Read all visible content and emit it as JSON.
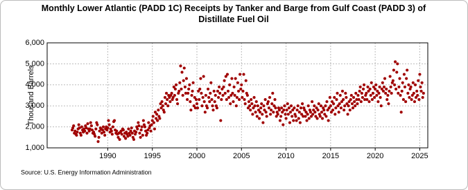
{
  "chart_data": {
    "type": "scatter",
    "title": "Monthly Lower Atlantic (PADD 1C) Receipts by Tanker and Barge from Gulf Coast (PADD 3) of Distillate Fuel Oil",
    "ylabel": "Thousand Barrels",
    "source": "Source: U.S. Energy Information Administration",
    "color": "#a00000",
    "grid": true,
    "xlim": [
      1983.2,
      2025.9
    ],
    "xticks": [
      1990,
      1995,
      2000,
      2005,
      2010,
      2015,
      2020,
      2025
    ],
    "ylim": [
      1000,
      6000
    ],
    "yticks": [
      {
        "value": 1000,
        "label": "1,000"
      },
      {
        "value": 2000,
        "label": "2,000"
      },
      {
        "value": 3000,
        "label": "3,000"
      },
      {
        "value": 4000,
        "label": "4,000"
      },
      {
        "value": 5000,
        "label": "5,000"
      },
      {
        "value": 6000,
        "label": "6,000"
      }
    ],
    "x": [
      1986,
      1986.08,
      1986.17,
      1986.25,
      1986.33,
      1986.42,
      1986.5,
      1986.58,
      1986.67,
      1986.75,
      1986.83,
      1986.92,
      1987,
      1987.08,
      1987.17,
      1987.25,
      1987.33,
      1987.42,
      1987.5,
      1987.58,
      1987.67,
      1987.75,
      1987.83,
      1987.92,
      1988,
      1988.08,
      1988.17,
      1988.25,
      1988.33,
      1988.42,
      1988.5,
      1988.58,
      1988.67,
      1988.75,
      1988.83,
      1988.92,
      1989,
      1989.08,
      1989.17,
      1989.25,
      1989.33,
      1989.42,
      1989.5,
      1989.58,
      1989.67,
      1989.75,
      1989.83,
      1989.92,
      1990,
      1990.08,
      1990.17,
      1990.25,
      1990.33,
      1990.42,
      1990.5,
      1990.58,
      1990.67,
      1990.75,
      1990.83,
      1990.92,
      1991,
      1991.08,
      1991.17,
      1991.25,
      1991.33,
      1991.42,
      1991.5,
      1991.58,
      1991.67,
      1991.75,
      1991.83,
      1991.92,
      1992,
      1992.08,
      1992.17,
      1992.25,
      1992.33,
      1992.42,
      1992.5,
      1992.58,
      1992.67,
      1992.75,
      1992.83,
      1992.92,
      1993,
      1993.08,
      1993.17,
      1993.25,
      1993.33,
      1993.42,
      1993.5,
      1993.58,
      1993.67,
      1993.75,
      1993.83,
      1993.92,
      1994,
      1994.08,
      1994.17,
      1994.25,
      1994.33,
      1994.42,
      1994.5,
      1994.58,
      1994.67,
      1994.75,
      1994.83,
      1994.92,
      1995,
      1995.08,
      1995.17,
      1995.25,
      1995.33,
      1995.42,
      1995.5,
      1995.58,
      1995.67,
      1995.75,
      1995.83,
      1995.92,
      1996,
      1996.08,
      1996.17,
      1996.25,
      1996.33,
      1996.42,
      1996.5,
      1996.58,
      1996.67,
      1996.75,
      1996.83,
      1996.92,
      1997,
      1997.08,
      1997.17,
      1997.25,
      1997.33,
      1997.42,
      1997.5,
      1997.58,
      1997.67,
      1997.75,
      1997.83,
      1997.92,
      1998,
      1998.08,
      1998.17,
      1998.25,
      1998.33,
      1998.42,
      1998.5,
      1998.58,
      1998.67,
      1998.75,
      1998.83,
      1998.92,
      1999,
      1999.08,
      1999.17,
      1999.25,
      1999.33,
      1999.42,
      1999.5,
      1999.58,
      1999.67,
      1999.75,
      1999.83,
      1999.92,
      2000,
      2000.08,
      2000.17,
      2000.25,
      2000.33,
      2000.42,
      2000.5,
      2000.58,
      2000.67,
      2000.75,
      2000.83,
      2000.92,
      2001,
      2001.08,
      2001.17,
      2001.25,
      2001.33,
      2001.42,
      2001.5,
      2001.58,
      2001.67,
      2001.75,
      2001.83,
      2001.92,
      2002,
      2002.08,
      2002.17,
      2002.25,
      2002.33,
      2002.42,
      2002.5,
      2002.58,
      2002.67,
      2002.75,
      2002.83,
      2002.92,
      2003,
      2003.08,
      2003.17,
      2003.25,
      2003.33,
      2003.42,
      2003.5,
      2003.58,
      2003.67,
      2003.75,
      2003.83,
      2003.92,
      2004,
      2004.08,
      2004.17,
      2004.25,
      2004.33,
      2004.42,
      2004.5,
      2004.58,
      2004.67,
      2004.75,
      2004.83,
      2004.92,
      2005,
      2005.08,
      2005.17,
      2005.25,
      2005.33,
      2005.42,
      2005.5,
      2005.58,
      2005.67,
      2005.75,
      2005.83,
      2005.92,
      2006,
      2006.08,
      2006.17,
      2006.25,
      2006.33,
      2006.42,
      2006.5,
      2006.58,
      2006.67,
      2006.75,
      2006.83,
      2006.92,
      2007,
      2007.08,
      2007.17,
      2007.25,
      2007.33,
      2007.42,
      2007.5,
      2007.58,
      2007.67,
      2007.75,
      2007.83,
      2007.92,
      2008,
      2008.08,
      2008.17,
      2008.25,
      2008.33,
      2008.42,
      2008.5,
      2008.58,
      2008.67,
      2008.75,
      2008.83,
      2008.92,
      2009,
      2009.08,
      2009.17,
      2009.25,
      2009.33,
      2009.42,
      2009.5,
      2009.58,
      2009.67,
      2009.75,
      2009.83,
      2009.92,
      2010,
      2010.08,
      2010.17,
      2010.25,
      2010.33,
      2010.42,
      2010.5,
      2010.58,
      2010.67,
      2010.75,
      2010.83,
      2010.92,
      2011,
      2011.08,
      2011.17,
      2011.25,
      2011.33,
      2011.42,
      2011.5,
      2011.58,
      2011.67,
      2011.75,
      2011.83,
      2011.92,
      2012,
      2012.08,
      2012.17,
      2012.25,
      2012.33,
      2012.42,
      2012.5,
      2012.58,
      2012.67,
      2012.75,
      2012.83,
      2012.92,
      2013,
      2013.08,
      2013.17,
      2013.25,
      2013.33,
      2013.42,
      2013.5,
      2013.58,
      2013.67,
      2013.75,
      2013.83,
      2013.92,
      2014,
      2014.08,
      2014.17,
      2014.25,
      2014.33,
      2014.42,
      2014.5,
      2014.58,
      2014.67,
      2014.75,
      2014.83,
      2014.92,
      2015,
      2015.08,
      2015.17,
      2015.25,
      2015.33,
      2015.42,
      2015.5,
      2015.58,
      2015.67,
      2015.75,
      2015.83,
      2015.92,
      2016,
      2016.08,
      2016.17,
      2016.25,
      2016.33,
      2016.42,
      2016.5,
      2016.58,
      2016.67,
      2016.75,
      2016.83,
      2016.92,
      2017,
      2017.08,
      2017.17,
      2017.25,
      2017.33,
      2017.42,
      2017.5,
      2017.58,
      2017.67,
      2017.75,
      2017.83,
      2017.92,
      2018,
      2018.08,
      2018.17,
      2018.25,
      2018.33,
      2018.42,
      2018.5,
      2018.58,
      2018.67,
      2018.75,
      2018.83,
      2018.92,
      2019,
      2019.08,
      2019.17,
      2019.25,
      2019.33,
      2019.42,
      2019.5,
      2019.58,
      2019.67,
      2019.75,
      2019.83,
      2019.92,
      2020,
      2020.08,
      2020.17,
      2020.25,
      2020.33,
      2020.42,
      2020.5,
      2020.58,
      2020.67,
      2020.75,
      2020.83,
      2020.92,
      2021,
      2021.08,
      2021.17,
      2021.25,
      2021.33,
      2021.42,
      2021.5,
      2021.58,
      2021.67,
      2021.75,
      2021.83,
      2021.92,
      2022,
      2022.08,
      2022.17,
      2022.25,
      2022.33,
      2022.42,
      2022.5,
      2022.58,
      2022.67,
      2022.75,
      2022.83,
      2022.92,
      2023,
      2023.08,
      2023.17,
      2023.25,
      2023.33,
      2023.42,
      2023.5,
      2023.58,
      2023.67,
      2023.75,
      2023.83,
      2023.92,
      2024,
      2024.08,
      2024.17,
      2024.25,
      2024.33,
      2024.42,
      2024.5,
      2024.58,
      2024.67,
      2024.75,
      2024.83,
      2024.92,
      2025,
      2025.08,
      2025.17,
      2025.25,
      2025.33,
      2025.42
    ],
    "values": [
      1850,
      1950,
      2050,
      1700,
      1800,
      1650,
      1600,
      1750,
      1900,
      2100,
      1950,
      1700,
      1600,
      2000,
      1850,
      1750,
      1900,
      1800,
      2050,
      1950,
      1700,
      2150,
      1900,
      1800,
      1900,
      2200,
      2050,
      1850,
      1700,
      1750,
      1650,
      1550,
      1900,
      2200,
      2100,
      1300,
      1500,
      1800,
      1950,
      1900,
      1700,
      1850,
      2000,
      1750,
      1600,
      1900,
      2000,
      1850,
      1950,
      2300,
      2100,
      1750,
      1900,
      1800,
      1650,
      2000,
      2250,
      2300,
      1850,
      1700,
      1800,
      1650,
      1500,
      1700,
      1400,
      1750,
      1800,
      1650,
      1900,
      1850,
      1550,
      1700,
      1450,
      1750,
      1650,
      1550,
      1900,
      1700,
      1600,
      1800,
      1950,
      1700,
      1500,
      1400,
      1800,
      1650,
      1750,
      2000,
      1900,
      2200,
      2050,
      1700,
      1500,
      1850,
      2000,
      1600,
      2300,
      2100,
      2000,
      1800,
      1600,
      1700,
      1850,
      2200,
      1950,
      2050,
      1800,
      2100,
      2300,
      2500,
      2200,
      1900,
      2700,
      2400,
      2600,
      2300,
      2800,
      2500,
      2400,
      3100,
      2900,
      3200,
      3000,
      2800,
      2700,
      3400,
      3100,
      3600,
      3300,
      3000,
      3500,
      3400,
      3200,
      3500,
      3600,
      3300,
      3400,
      3900,
      3500,
      3800,
      4000,
      3300,
      3100,
      3600,
      3700,
      4100,
      4900,
      3800,
      4600,
      3500,
      4200,
      4800,
      3900,
      3600,
      4300,
      3300,
      3600,
      3800,
      4000,
      3200,
      2800,
      3500,
      3700,
      4100,
      3000,
      3400,
      2900,
      3300,
      3100,
      2900,
      3700,
      3300,
      3800,
      4300,
      3600,
      3000,
      3400,
      4400,
      3200,
      2700,
      3500,
      3000,
      2900,
      3800,
      3400,
      3200,
      3600,
      4100,
      3300,
      3000,
      2800,
      3700,
      3200,
      3500,
      3000,
      2900,
      3700,
      3400,
      3900,
      3600,
      2300,
      3300,
      3800,
      3500,
      3900,
      4200,
      3600,
      4400,
      3300,
      4500,
      3700,
      3400,
      4000,
      3100,
      3500,
      4300,
      3600,
      3200,
      3900,
      3500,
      4300,
      3000,
      3400,
      4100,
      3700,
      3300,
      4500,
      3800,
      4000,
      3400,
      3700,
      4500,
      3300,
      3100,
      4200,
      3600,
      3500,
      2900,
      3200,
      3000,
      2800,
      3300,
      3100,
      2600,
      2900,
      3400,
      3000,
      2700,
      3200,
      2500,
      3000,
      2800,
      2400,
      2700,
      2900,
      3100,
      2600,
      2200,
      3000,
      2800,
      3300,
      2700,
      2500,
      3100,
      3200,
      2900,
      3400,
      2600,
      2800,
      3100,
      3600,
      2700,
      3000,
      3300,
      2900,
      2500,
      2700,
      2600,
      2900,
      2800,
      2300,
      2500,
      2900,
      2700,
      2100,
      2800,
      3000,
      2600,
      2400,
      2800,
      3100,
      2600,
      2900,
      2200,
      2700,
      3000,
      2500,
      2800,
      2300,
      2900,
      2600,
      2500,
      2300,
      2800,
      3000,
      2400,
      2700,
      2200,
      2900,
      2600,
      3100,
      2500,
      2900,
      2800,
      2500,
      2700,
      2300,
      2600,
      3000,
      2400,
      2800,
      2700,
      2500,
      3200,
      2600,
      2800,
      3000,
      2700,
      2500,
      2900,
      2400,
      2800,
      3100,
      2600,
      2500,
      3000,
      2700,
      2400,
      2900,
      2800,
      2600,
      3000,
      2500,
      3200,
      2800,
      2300,
      2900,
      3400,
      3000,
      2700,
      3200,
      2800,
      3100,
      3400,
      2600,
      2900,
      3300,
      3600,
      3000,
      2700,
      3100,
      3500,
      2900,
      3200,
      3700,
      3300,
      2800,
      3000,
      3600,
      3400,
      3100,
      2600,
      3000,
      3200,
      2800,
      3300,
      3500,
      3100,
      2900,
      3400,
      3200,
      3000,
      3600,
      3300,
      3100,
      3500,
      3300,
      3700,
      3900,
      3200,
      3600,
      3400,
      3800,
      4000,
      3300,
      3500,
      3600,
      3300,
      3900,
      3700,
      3200,
      3800,
      3500,
      4100,
      3300,
      3600,
      3900,
      3400,
      3800,
      4000,
      3500,
      3700,
      3200,
      3600,
      3900,
      3400,
      3000,
      3800,
      4100,
      3700,
      3900,
      4300,
      3600,
      3800,
      3300,
      3500,
      3100,
      3700,
      4400,
      3900,
      3600,
      4100,
      4200,
      4700,
      4000,
      5100,
      3800,
      4600,
      5000,
      3600,
      3900,
      4300,
      3500,
      2700,
      3700,
      4100,
      3300,
      4500,
      3900,
      3200,
      4300,
      4700,
      3600,
      4000,
      3400,
      3800,
      3900,
      3300,
      3500,
      4100,
      3600,
      3200,
      4000,
      3400,
      3700,
      3500,
      4200,
      3300,
      4500,
      3900,
      3700,
      4100,
      3400,
      3600
    ]
  }
}
